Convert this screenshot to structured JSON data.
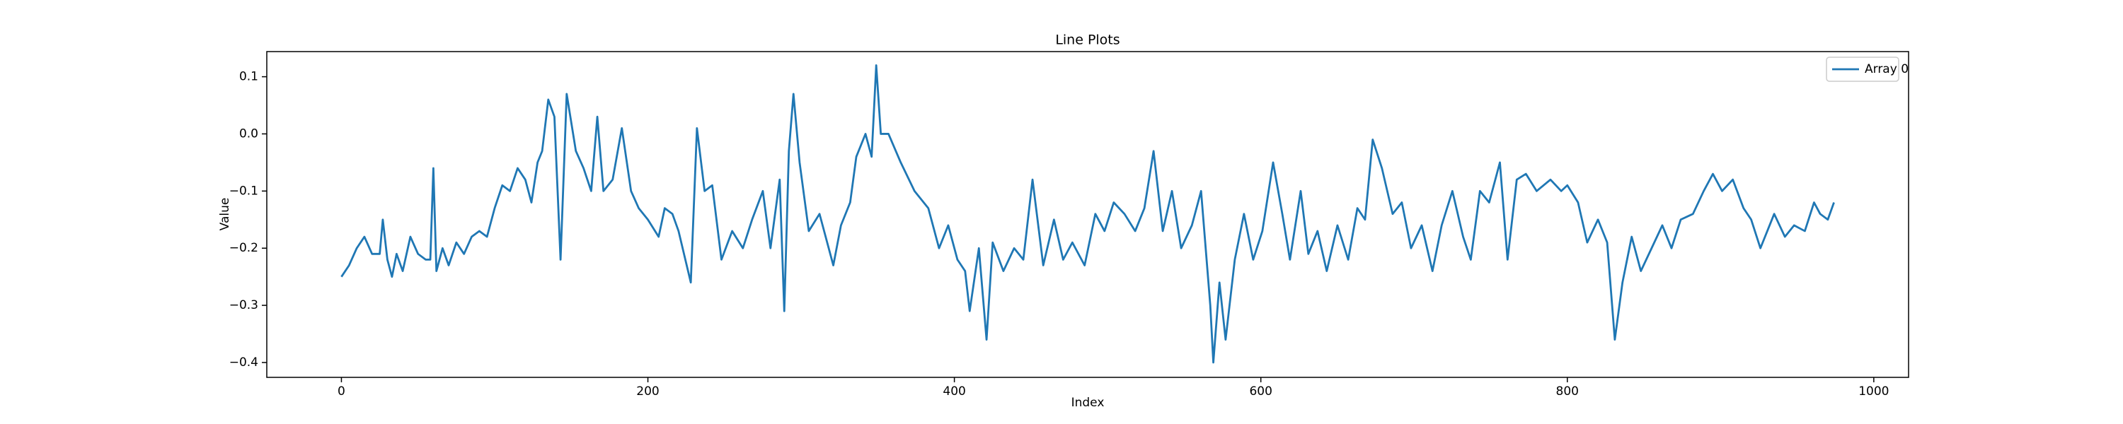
{
  "chart_data": {
    "type": "line",
    "title": "Line Plots",
    "x_label": "Index",
    "y_label": "Value",
    "x": [
      0,
      5,
      10,
      15,
      20,
      25,
      27,
      30,
      33,
      36,
      40,
      45,
      50,
      55,
      58,
      60,
      62,
      66,
      70,
      75,
      80,
      85,
      90,
      95,
      100,
      105,
      110,
      115,
      120,
      124,
      128,
      131,
      135,
      139,
      143,
      147,
      153,
      158,
      163,
      167,
      171,
      177,
      183,
      189,
      194,
      200,
      207,
      211,
      216,
      220,
      228,
      232,
      237,
      242,
      248,
      255,
      262,
      268,
      275,
      280,
      286,
      289,
      292,
      295,
      299,
      305,
      312,
      321,
      326,
      332,
      336,
      342,
      346,
      349,
      352,
      357,
      365,
      374,
      383,
      390,
      396,
      402,
      407,
      410,
      416,
      421,
      425,
      432,
      439,
      445,
      451,
      458,
      465,
      471,
      477,
      485,
      492,
      498,
      504,
      511,
      518,
      524,
      530,
      536,
      542,
      548,
      555,
      561,
      567,
      569,
      573,
      577,
      583,
      589,
      595,
      601,
      608,
      614,
      619,
      626,
      631,
      637,
      643,
      650,
      657,
      663,
      668,
      673,
      679,
      686,
      692,
      698,
      705,
      712,
      718,
      725,
      732,
      737,
      743,
      749,
      756,
      761,
      767,
      773,
      780,
      789,
      796,
      800,
      807,
      813,
      820,
      826,
      831,
      836,
      842,
      848,
      855,
      862,
      868,
      874,
      882,
      889,
      895,
      901,
      908,
      915,
      920,
      926,
      935,
      942,
      948,
      955,
      961,
      965,
      970,
      974
    ],
    "series": [
      {
        "name": "Array 0",
        "color": "#1f77b4",
        "values": [
          -0.25,
          -0.23,
          -0.2,
          -0.18,
          -0.21,
          -0.21,
          -0.15,
          -0.22,
          -0.25,
          -0.21,
          -0.24,
          -0.18,
          -0.21,
          -0.22,
          -0.22,
          -0.06,
          -0.24,
          -0.2,
          -0.23,
          -0.19,
          -0.21,
          -0.18,
          -0.17,
          -0.18,
          -0.13,
          -0.09,
          -0.1,
          -0.06,
          -0.08,
          -0.12,
          -0.05,
          -0.03,
          0.06,
          0.03,
          -0.22,
          0.07,
          -0.03,
          -0.06,
          -0.1,
          0.03,
          -0.1,
          -0.08,
          0.01,
          -0.1,
          -0.13,
          -0.15,
          -0.18,
          -0.13,
          -0.14,
          -0.17,
          -0.26,
          0.01,
          -0.1,
          -0.09,
          -0.22,
          -0.17,
          -0.2,
          -0.15,
          -0.1,
          -0.2,
          -0.08,
          -0.31,
          -0.03,
          0.07,
          -0.05,
          -0.17,
          -0.14,
          -0.23,
          -0.16,
          -0.12,
          -0.04,
          0.0,
          -0.04,
          0.12,
          0.0,
          0.0,
          -0.05,
          -0.1,
          -0.13,
          -0.2,
          -0.16,
          -0.22,
          -0.24,
          -0.31,
          -0.2,
          -0.36,
          -0.19,
          -0.24,
          -0.2,
          -0.22,
          -0.08,
          -0.23,
          -0.15,
          -0.22,
          -0.19,
          -0.23,
          -0.14,
          -0.17,
          -0.12,
          -0.14,
          -0.17,
          -0.13,
          -0.03,
          -0.17,
          -0.1,
          -0.2,
          -0.16,
          -0.1,
          -0.3,
          -0.4,
          -0.26,
          -0.36,
          -0.22,
          -0.14,
          -0.22,
          -0.17,
          -0.05,
          -0.14,
          -0.22,
          -0.1,
          -0.21,
          -0.17,
          -0.24,
          -0.16,
          -0.22,
          -0.13,
          -0.15,
          -0.01,
          -0.06,
          -0.14,
          -0.12,
          -0.2,
          -0.16,
          -0.24,
          -0.16,
          -0.1,
          -0.18,
          -0.22,
          -0.1,
          -0.12,
          -0.05,
          -0.22,
          -0.08,
          -0.07,
          -0.1,
          -0.08,
          -0.1,
          -0.09,
          -0.12,
          -0.19,
          -0.15,
          -0.19,
          -0.36,
          -0.26,
          -0.18,
          -0.24,
          -0.2,
          -0.16,
          -0.2,
          -0.15,
          -0.14,
          -0.1,
          -0.07,
          -0.1,
          -0.08,
          -0.13,
          -0.15,
          -0.2,
          -0.14,
          -0.18,
          -0.16,
          -0.17,
          -0.12,
          -0.14,
          -0.15,
          -0.12
        ]
      }
    ],
    "xlim": [
      -48.7,
      1022.7
    ],
    "xticks": [
      0,
      200,
      400,
      600,
      800,
      1000
    ],
    "ylim": [
      -0.426,
      0.144
    ],
    "yticks": [
      {
        "value": -0.4,
        "label": "−0.4"
      },
      {
        "value": -0.3,
        "label": "−0.3"
      },
      {
        "value": -0.2,
        "label": "−0.2"
      },
      {
        "value": -0.1,
        "label": "−0.1"
      },
      {
        "value": 0.0,
        "label": "0.0"
      },
      0.1
    ],
    "grid": false,
    "legend": "upper right"
  }
}
